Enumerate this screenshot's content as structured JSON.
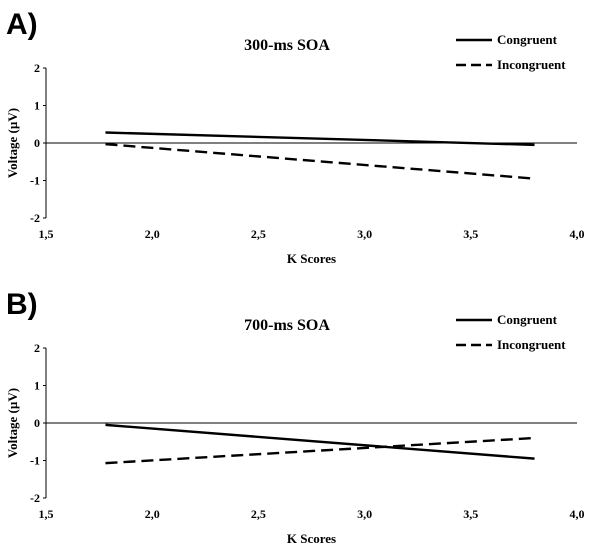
{
  "chart_data": [
    {
      "type": "line",
      "panel_label": "A)",
      "title": "300-ms SOA",
      "xlabel": "K Scores",
      "ylabel": "Voltage (µV)",
      "xlim": [
        1.5,
        4.0
      ],
      "ylim": [
        -2,
        2
      ],
      "x_ticks": [
        "1,5",
        "2,0",
        "2,5",
        "3,0",
        "3,5",
        "4,0"
      ],
      "y_ticks": [
        "2",
        "1",
        "0",
        "-1",
        "-2"
      ],
      "legend_position": "top-right",
      "series": [
        {
          "name": "Congruent",
          "style": "solid",
          "x": [
            1.78,
            3.8
          ],
          "y": [
            0.28,
            -0.05
          ]
        },
        {
          "name": "Incongruent",
          "style": "dashed",
          "x": [
            1.78,
            3.8
          ],
          "y": [
            -0.03,
            -0.95
          ]
        }
      ]
    },
    {
      "type": "line",
      "panel_label": "B)",
      "title": "700-ms SOA",
      "xlabel": "K Scores",
      "ylabel": "Voltage (µV)",
      "xlim": [
        1.5,
        4.0
      ],
      "ylim": [
        -2,
        2
      ],
      "x_ticks": [
        "1,5",
        "2,0",
        "2,5",
        "3,0",
        "3,5",
        "4,0"
      ],
      "y_ticks": [
        "2",
        "1",
        "0",
        "-1",
        "-2"
      ],
      "legend_position": "top-right",
      "series": [
        {
          "name": "Congruent",
          "style": "solid",
          "x": [
            1.78,
            3.8
          ],
          "y": [
            -0.05,
            -0.95
          ]
        },
        {
          "name": "Incongruent",
          "style": "dashed",
          "x": [
            1.78,
            3.8
          ],
          "y": [
            -1.07,
            -0.4
          ]
        }
      ]
    }
  ]
}
